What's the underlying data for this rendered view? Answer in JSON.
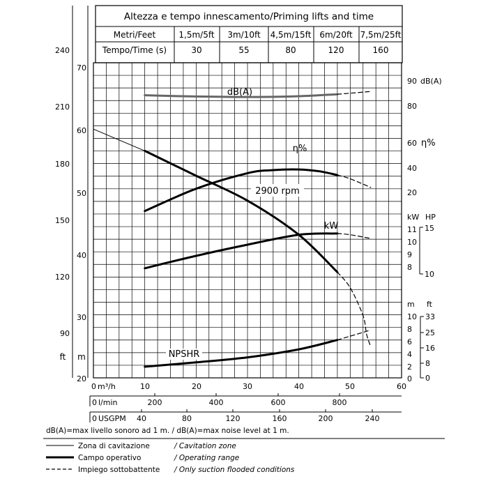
{
  "chart_data": {
    "type": "line",
    "title": "Altezza e tempo innescamento/Priming lifts and time",
    "priming_table": {
      "row1_header": "Metri/Feet",
      "row2_header": "Tempo/Time (s)",
      "lifts": [
        "1,5m/5ft",
        "3m/10ft",
        "4,5m/15ft",
        "6m/20ft",
        "7,5m/25ft"
      ],
      "times": [
        "30",
        "55",
        "80",
        "120",
        "160"
      ]
    },
    "x_axis": {
      "label": "m³/h",
      "range": [
        0,
        60
      ],
      "ticks": [
        "0",
        "10",
        "20",
        "30",
        "40",
        "50",
        "60"
      ]
    },
    "x_axis_lmin": {
      "label": "l/min",
      "zero": "0",
      "ticks": [
        "200",
        "400",
        "600",
        "800"
      ]
    },
    "x_axis_usgpm": {
      "label": "USGPM",
      "zero": "0",
      "ticks": [
        "40",
        "80",
        "120",
        "160",
        "200",
        "240"
      ]
    },
    "head_axis_m": {
      "unit": "m",
      "range": [
        20,
        70
      ],
      "ticks": [
        "70",
        "60",
        "50",
        "40",
        "30",
        "20"
      ]
    },
    "head_axis_ft": {
      "unit": "ft",
      "ticks": [
        "240",
        "210",
        "180",
        "150",
        "120",
        "90"
      ]
    },
    "db_axis": {
      "unit": "dB(A)",
      "ticks": [
        "90",
        "80"
      ]
    },
    "eff_axis": {
      "unit": "η%",
      "ticks": [
        "60",
        "40",
        "20"
      ]
    },
    "kw_axis": {
      "unit_kw": "kW",
      "unit_hp": "HP",
      "kw_ticks": [
        "11",
        "10",
        "9",
        "8"
      ],
      "hp_ticks": [
        "15",
        "10"
      ]
    },
    "npsh_axis": {
      "unit_m": "m",
      "unit_ft": "ft",
      "m_ticks": [
        "10",
        "8",
        "6",
        "4",
        "2",
        "0"
      ],
      "ft_ticks": [
        "33",
        "25",
        "16",
        "8",
        "0"
      ]
    },
    "speed_label": "2900 rpm",
    "series": [
      {
        "name": "dB(A)",
        "unit": "dB(A)",
        "solid": [
          [
            10,
            84
          ],
          [
            20,
            83.5
          ],
          [
            30,
            83.3
          ],
          [
            40,
            83.6
          ],
          [
            47.5,
            84.4
          ]
        ],
        "dashed": [
          [
            47.5,
            84.4
          ],
          [
            50,
            84.8
          ],
          [
            54,
            85.5
          ]
        ]
      },
      {
        "name": "η%",
        "unit": "η%",
        "solid": [
          [
            10,
            5
          ],
          [
            20,
            23
          ],
          [
            30,
            35.5
          ],
          [
            35,
            38
          ],
          [
            40,
            38.5
          ],
          [
            44,
            37
          ],
          [
            47.5,
            34
          ]
        ],
        "dashed": [
          [
            47.5,
            34
          ],
          [
            50,
            31
          ],
          [
            54,
            24
          ]
        ]
      },
      {
        "name": "",
        "unit": "m",
        "thin": [
          [
            0,
            60
          ],
          [
            10,
            56.5
          ]
        ],
        "solid": [
          [
            10,
            56.5
          ],
          [
            20,
            52.5
          ],
          [
            30,
            48.5
          ],
          [
            40,
            43
          ],
          [
            47.5,
            37
          ]
        ],
        "dashed": [
          [
            47.5,
            37
          ],
          [
            50,
            34.5
          ],
          [
            52.5,
            30
          ],
          [
            53.2,
            27
          ],
          [
            54,
            25
          ]
        ]
      },
      {
        "name": "kW",
        "unit": "kW",
        "solid": [
          [
            10,
            7.9
          ],
          [
            20,
            8.9
          ],
          [
            30,
            9.8
          ],
          [
            40,
            10.6
          ],
          [
            47.5,
            10.7
          ]
        ],
        "dashed": [
          [
            47.5,
            10.7
          ],
          [
            50,
            10.6
          ],
          [
            54,
            10.3
          ]
        ]
      },
      {
        "name": "NPSHR",
        "unit": "m",
        "solid": [
          [
            10,
            1.8
          ],
          [
            20,
            2.5
          ],
          [
            30,
            3.3
          ],
          [
            40,
            4.6
          ],
          [
            47.5,
            6.1
          ]
        ],
        "dashed": [
          [
            47.5,
            6.1
          ],
          [
            54,
            7.7
          ]
        ]
      }
    ],
    "notes": "dB(A)=max livello sonoro ad 1 m.  / dB(A)=max noise level at 1 m.",
    "legend": [
      {
        "style": "thin",
        "it": "Zona di cavitazione",
        "en": "/ Cavitation zone"
      },
      {
        "style": "thick",
        "it": "Campo operativo",
        "en": "/ Operating range"
      },
      {
        "style": "dashed",
        "it": "Impiego sottobattente",
        "en": "/ Only suction flooded conditions"
      }
    ],
    "grid": true
  }
}
